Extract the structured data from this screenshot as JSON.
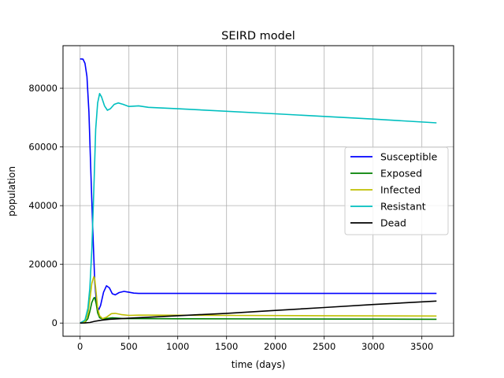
{
  "chart_data": {
    "type": "line",
    "title": "SEIRD model",
    "xlabel": "time (days)",
    "ylabel": "population",
    "xlim": [
      -175,
      3825
    ],
    "ylim": [
      -4500,
      94500
    ],
    "xticks": [
      0,
      500,
      1000,
      1500,
      2000,
      2500,
      3000,
      3500
    ],
    "yticks": [
      0,
      20000,
      40000,
      60000,
      80000
    ],
    "grid": true,
    "legend_position": "center-right",
    "series": [
      {
        "name": "Susceptible",
        "color": "#0000ff",
        "points": [
          [
            0,
            90000
          ],
          [
            30,
            89900
          ],
          [
            50,
            88500
          ],
          [
            70,
            84000
          ],
          [
            90,
            72000
          ],
          [
            110,
            52000
          ],
          [
            130,
            32000
          ],
          [
            150,
            14000
          ],
          [
            170,
            6000
          ],
          [
            190,
            4500
          ],
          [
            210,
            6000
          ],
          [
            240,
            10500
          ],
          [
            270,
            12700
          ],
          [
            300,
            12000
          ],
          [
            330,
            10000
          ],
          [
            360,
            9600
          ],
          [
            400,
            10400
          ],
          [
            450,
            10800
          ],
          [
            500,
            10500
          ],
          [
            550,
            10200
          ],
          [
            600,
            10100
          ],
          [
            700,
            10100
          ],
          [
            1000,
            10100
          ],
          [
            2000,
            10100
          ],
          [
            3000,
            10100
          ],
          [
            3650,
            10100
          ]
        ]
      },
      {
        "name": "Exposed",
        "color": "#008000",
        "points": [
          [
            0,
            0
          ],
          [
            50,
            300
          ],
          [
            80,
            1500
          ],
          [
            100,
            4000
          ],
          [
            120,
            7000
          ],
          [
            140,
            8500
          ],
          [
            150,
            8700
          ],
          [
            165,
            6500
          ],
          [
            180,
            3500
          ],
          [
            200,
            1800
          ],
          [
            230,
            1400
          ],
          [
            280,
            1600
          ],
          [
            330,
            1800
          ],
          [
            380,
            1700
          ],
          [
            450,
            1500
          ],
          [
            600,
            1500
          ],
          [
            1000,
            1450
          ],
          [
            2000,
            1400
          ],
          [
            3000,
            1350
          ],
          [
            3650,
            1300
          ]
        ]
      },
      {
        "name": "Infected",
        "color": "#bfbf00",
        "points": [
          [
            0,
            0
          ],
          [
            50,
            500
          ],
          [
            80,
            3000
          ],
          [
            100,
            8000
          ],
          [
            120,
            13500
          ],
          [
            140,
            15800
          ],
          [
            150,
            15000
          ],
          [
            165,
            10000
          ],
          [
            180,
            5000
          ],
          [
            200,
            2500
          ],
          [
            230,
            1500
          ],
          [
            270,
            2000
          ],
          [
            320,
            3200
          ],
          [
            360,
            3300
          ],
          [
            420,
            2900
          ],
          [
            500,
            2600
          ],
          [
            600,
            2700
          ],
          [
            800,
            2700
          ],
          [
            1500,
            2600
          ],
          [
            2500,
            2500
          ],
          [
            3650,
            2400
          ]
        ]
      },
      {
        "name": "Resistant",
        "color": "#00bfbf",
        "points": [
          [
            0,
            0
          ],
          [
            50,
            1000
          ],
          [
            80,
            5000
          ],
          [
            100,
            12000
          ],
          [
            120,
            25000
          ],
          [
            140,
            45000
          ],
          [
            160,
            66000
          ],
          [
            180,
            75000
          ],
          [
            200,
            78200
          ],
          [
            220,
            77000
          ],
          [
            250,
            74000
          ],
          [
            280,
            72500
          ],
          [
            310,
            73000
          ],
          [
            350,
            74500
          ],
          [
            390,
            75000
          ],
          [
            440,
            74500
          ],
          [
            500,
            73800
          ],
          [
            600,
            74000
          ],
          [
            700,
            73500
          ],
          [
            1000,
            73000
          ],
          [
            2000,
            71300
          ],
          [
            3000,
            69500
          ],
          [
            3650,
            68200
          ]
        ]
      },
      {
        "name": "Dead",
        "color": "#000000",
        "points": [
          [
            0,
            0
          ],
          [
            50,
            30
          ],
          [
            100,
            200
          ],
          [
            150,
            600
          ],
          [
            200,
            900
          ],
          [
            300,
            1300
          ],
          [
            500,
            1650
          ],
          [
            1000,
            2500
          ],
          [
            1500,
            3300
          ],
          [
            2000,
            4300
          ],
          [
            2500,
            5300
          ],
          [
            3000,
            6300
          ],
          [
            3650,
            7500
          ]
        ]
      }
    ]
  }
}
